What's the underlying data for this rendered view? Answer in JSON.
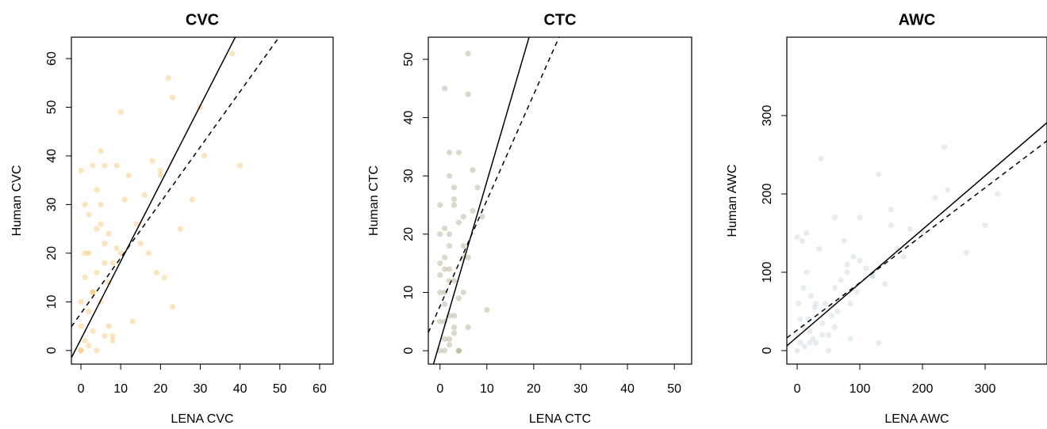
{
  "chart_data": [
    {
      "type": "scatter",
      "title": "CVC",
      "xlabel": "LENA CVC",
      "ylabel": "Human CVC",
      "color": "#f5a623",
      "x": [
        0,
        0,
        0,
        1,
        1,
        2,
        2,
        3,
        3,
        4,
        4,
        5,
        5,
        6,
        6,
        7,
        8,
        9,
        10,
        0,
        1,
        2,
        3,
        4,
        5,
        6,
        7,
        8,
        10,
        12,
        14,
        15,
        16,
        18,
        20,
        22,
        23,
        0,
        2,
        4,
        5,
        7,
        9,
        11,
        13,
        17,
        19,
        20,
        25,
        28,
        30,
        31,
        38,
        40,
        21,
        23,
        3,
        1,
        6,
        8
      ],
      "y": [
        0,
        5,
        10,
        2,
        15,
        8,
        20,
        4,
        12,
        16,
        25,
        10,
        30,
        3,
        22,
        14,
        18,
        21,
        20,
        37,
        30,
        28,
        38,
        33,
        41,
        38,
        5,
        2,
        49,
        36,
        26,
        22,
        32,
        39,
        36,
        56,
        52,
        0,
        1,
        0,
        26,
        24,
        38,
        31,
        6,
        20,
        16,
        37,
        25,
        31,
        50,
        40,
        61,
        38,
        15,
        9,
        12,
        20,
        18,
        3
      ],
      "xlim": [
        -2.4,
        63.4
      ],
      "ylim": [
        -2.8,
        64.4
      ],
      "xticks": [
        0,
        10,
        20,
        30,
        40,
        50,
        60
      ],
      "yticks": [
        0,
        10,
        20,
        30,
        40,
        50,
        60
      ],
      "lines": [
        {
          "x": [
            -2.4,
            38.8
          ],
          "y": [
            -1.5,
            64.4
          ],
          "dash": false
        },
        {
          "x": [
            -2.4,
            49.8
          ],
          "y": [
            4.9,
            64.4
          ],
          "dash": true
        }
      ]
    },
    {
      "type": "scatter",
      "title": "CTC",
      "xlabel": "LENA CTC",
      "ylabel": "Human CTC",
      "color": "#8b8050",
      "x": [
        0,
        0,
        0,
        0,
        1,
        1,
        1,
        1,
        2,
        2,
        2,
        2,
        3,
        3,
        3,
        4,
        4,
        4,
        5,
        5,
        6,
        6,
        7,
        7,
        8,
        10,
        0,
        1,
        2,
        3,
        4,
        5,
        6,
        1,
        2,
        3,
        0,
        1,
        2,
        3,
        0,
        1,
        2,
        4,
        5,
        6,
        9,
        3,
        2,
        1
      ],
      "y": [
        0,
        5,
        10,
        15,
        2,
        8,
        14,
        45,
        1,
        6,
        20,
        34,
        3,
        12,
        25,
        0,
        9,
        34,
        18,
        23,
        44,
        51,
        31,
        24,
        28,
        7,
        20,
        16,
        12,
        28,
        22,
        16,
        4,
        0,
        2,
        4,
        25,
        21,
        18,
        26,
        13,
        10,
        14,
        0,
        10,
        16,
        23,
        6,
        30,
        5
      ],
      "xlim": [
        -2.5,
        53.7
      ],
      "ylim": [
        -2.3,
        53.8
      ],
      "xticks": [
        0,
        10,
        20,
        30,
        40,
        50
      ],
      "yticks": [
        0,
        10,
        20,
        30,
        40,
        50
      ],
      "lines": [
        {
          "x": [
            -1.4,
            19
          ],
          "y": [
            -2.3,
            53.8
          ],
          "dash": false
        },
        {
          "x": [
            -2.5,
            25.4
          ],
          "y": [
            3.1,
            53.8
          ],
          "dash": true
        }
      ]
    },
    {
      "type": "scatter",
      "title": "AWC",
      "xlabel": "LENA AWC",
      "ylabel": "Human AWC",
      "color": "#a8c4cc",
      "x": [
        0,
        0,
        2,
        5,
        8,
        10,
        12,
        15,
        18,
        20,
        22,
        25,
        28,
        30,
        35,
        38,
        40,
        45,
        50,
        55,
        60,
        65,
        70,
        75,
        80,
        85,
        90,
        95,
        100,
        110,
        120,
        130,
        140,
        150,
        160,
        170,
        180,
        200,
        220,
        235,
        240,
        270,
        300,
        320,
        0,
        5,
        10,
        15,
        20,
        30,
        40,
        50,
        60,
        80,
        100,
        120,
        130,
        150,
        60,
        85
      ],
      "y": [
        0,
        20,
        60,
        10,
        140,
        30,
        5,
        150,
        40,
        25,
        70,
        15,
        55,
        10,
        130,
        245,
        35,
        60,
        20,
        45,
        80,
        50,
        90,
        140,
        100,
        60,
        120,
        75,
        115,
        105,
        95,
        225,
        85,
        160,
        130,
        120,
        155,
        150,
        195,
        260,
        205,
        125,
        160,
        200,
        145,
        40,
        80,
        100,
        10,
        60,
        20,
        0,
        30,
        110,
        170,
        95,
        10,
        180,
        170,
        15
      ],
      "xlim": [
        -16.5,
        398.7
      ],
      "ylim": [
        -17.2,
        400
      ],
      "xticks": [
        0,
        100,
        200,
        300
      ],
      "yticks": [
        0,
        100,
        200,
        300
      ],
      "lines": [
        {
          "x": [
            -16.5,
            398.7
          ],
          "y": [
            6.1,
            290.9
          ],
          "dash": false
        },
        {
          "x": [
            -16.5,
            398.7
          ],
          "y": [
            16.2,
            267.7
          ],
          "dash": true
        }
      ]
    }
  ]
}
